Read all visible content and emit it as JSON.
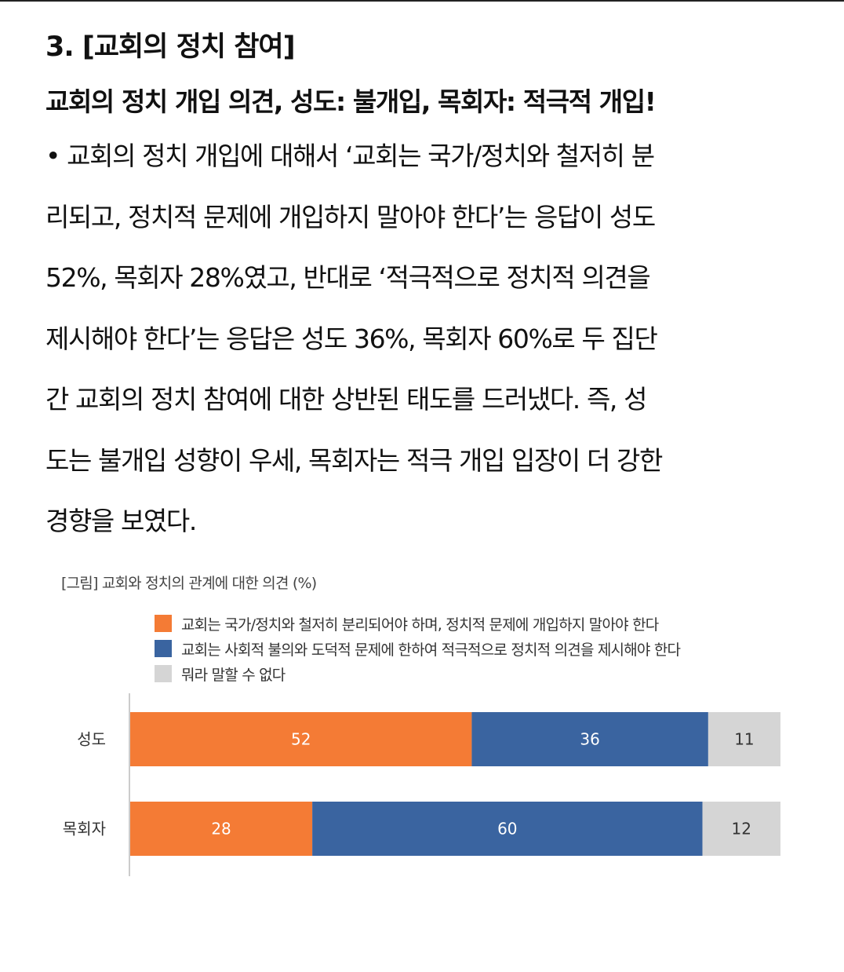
{
  "article": {
    "section_title": "3. [교회의 정치 참여]",
    "headline": "교회의 정치 개입 의견, 성도: 불개입, 목회자: 적극적 개입!",
    "body_lines": [
      "• 교회의 정치 개입에 대해서 ‘교회는 국가/정치와 철저히 분",
      "리되고, 정치적 문제에 개입하지 말아야 한다’는 응답이 성도",
      "52%, 목회자 28%였고, 반대로 ‘적극적으로 정치적 의견을",
      "제시해야 한다’는 응답은 성도 36%, 목회자 60%로 두 집단",
      "간 교회의 정치 참여에 대한 상반된 태도를 드러냈다. 즉, 성",
      "도는 불개입 성향이 우세, 목회자는 적극 개입 입장이 더 강한",
      "경향을 보였다."
    ]
  },
  "chart_data": {
    "type": "bar",
    "orientation": "horizontal",
    "stacked": true,
    "title": "[그림] 교회와 정치의 관계에 대한 의견 (%)",
    "categories": [
      "성도",
      "목회자"
    ],
    "series": [
      {
        "name": "교회는 국가/정치와 철저히 분리되어야 하며, 정치적 문제에 개입하지 말아야 한다",
        "values": [
          52,
          28
        ],
        "color": "#F47B35",
        "label_color": "#ffffff"
      },
      {
        "name": "교회는 사회적 불의와 도덕적 문제에 한하여 적극적으로 정치적 의견을 제시해야 한다",
        "values": [
          36,
          60
        ],
        "color": "#3A64A0",
        "label_color": "#ffffff"
      },
      {
        "name": "뭐라 말할 수 없다",
        "values": [
          11,
          12
        ],
        "color": "#D5D5D5",
        "label_color": "#333333"
      }
    ],
    "data_labels": [
      [
        "52",
        "36",
        "11"
      ],
      [
        "28",
        "60",
        "12"
      ]
    ],
    "legend_position": "top",
    "grid": false
  }
}
